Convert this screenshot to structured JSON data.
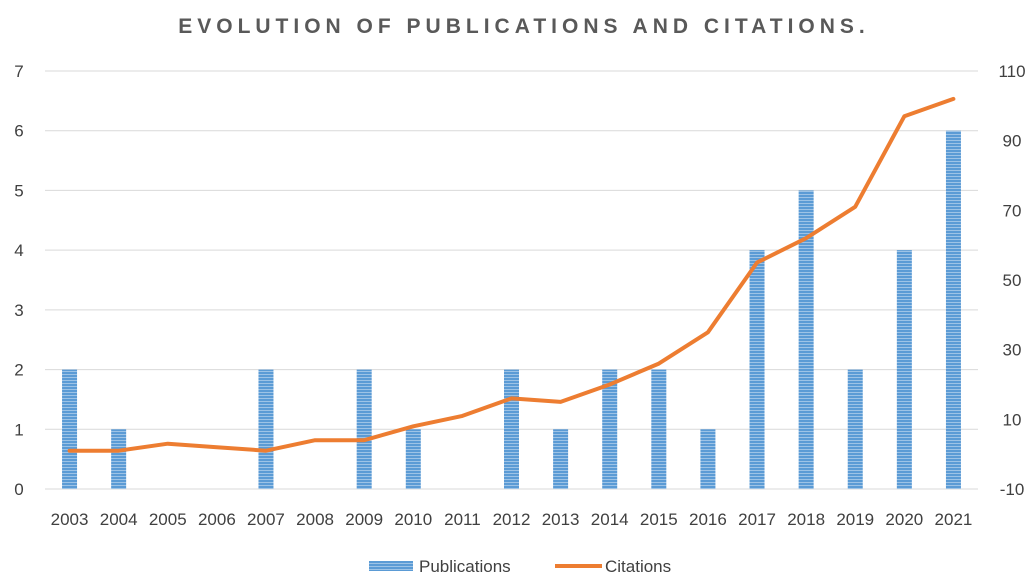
{
  "chart_data": {
    "type": "bar",
    "title": "EVOLUTION OF PUBLICATIONS AND CITATIONS.",
    "categories": [
      "2003",
      "2004",
      "2005",
      "2006",
      "2007",
      "2008",
      "2009",
      "2010",
      "2011",
      "2012",
      "2013",
      "2014",
      "2015",
      "2016",
      "2017",
      "2018",
      "2019",
      "2020",
      "2021"
    ],
    "series": [
      {
        "name": "Publications",
        "type": "bar",
        "axis": "left",
        "color": "#5b9bd5",
        "values": [
          2,
          1,
          0,
          0,
          2,
          0,
          2,
          1,
          0,
          2,
          1,
          2,
          2,
          1,
          4,
          5,
          2,
          4,
          6
        ]
      },
      {
        "name": "Citations",
        "type": "line",
        "axis": "right",
        "color": "#ed7d31",
        "values": [
          1,
          1,
          3,
          2,
          1,
          4,
          4,
          8,
          11,
          16,
          15,
          20,
          26,
          35,
          55,
          62,
          71,
          97,
          102
        ]
      }
    ],
    "left_axis": {
      "ylim": [
        0,
        7
      ],
      "ticks": [
        "0",
        "1",
        "2",
        "3",
        "4",
        "5",
        "6",
        "7"
      ]
    },
    "right_axis": {
      "ylim": [
        -10,
        110
      ],
      "ticks": [
        "-10",
        "10",
        "30",
        "50",
        "70",
        "90",
        "110"
      ]
    },
    "grid": true,
    "legend_position": "bottom"
  }
}
